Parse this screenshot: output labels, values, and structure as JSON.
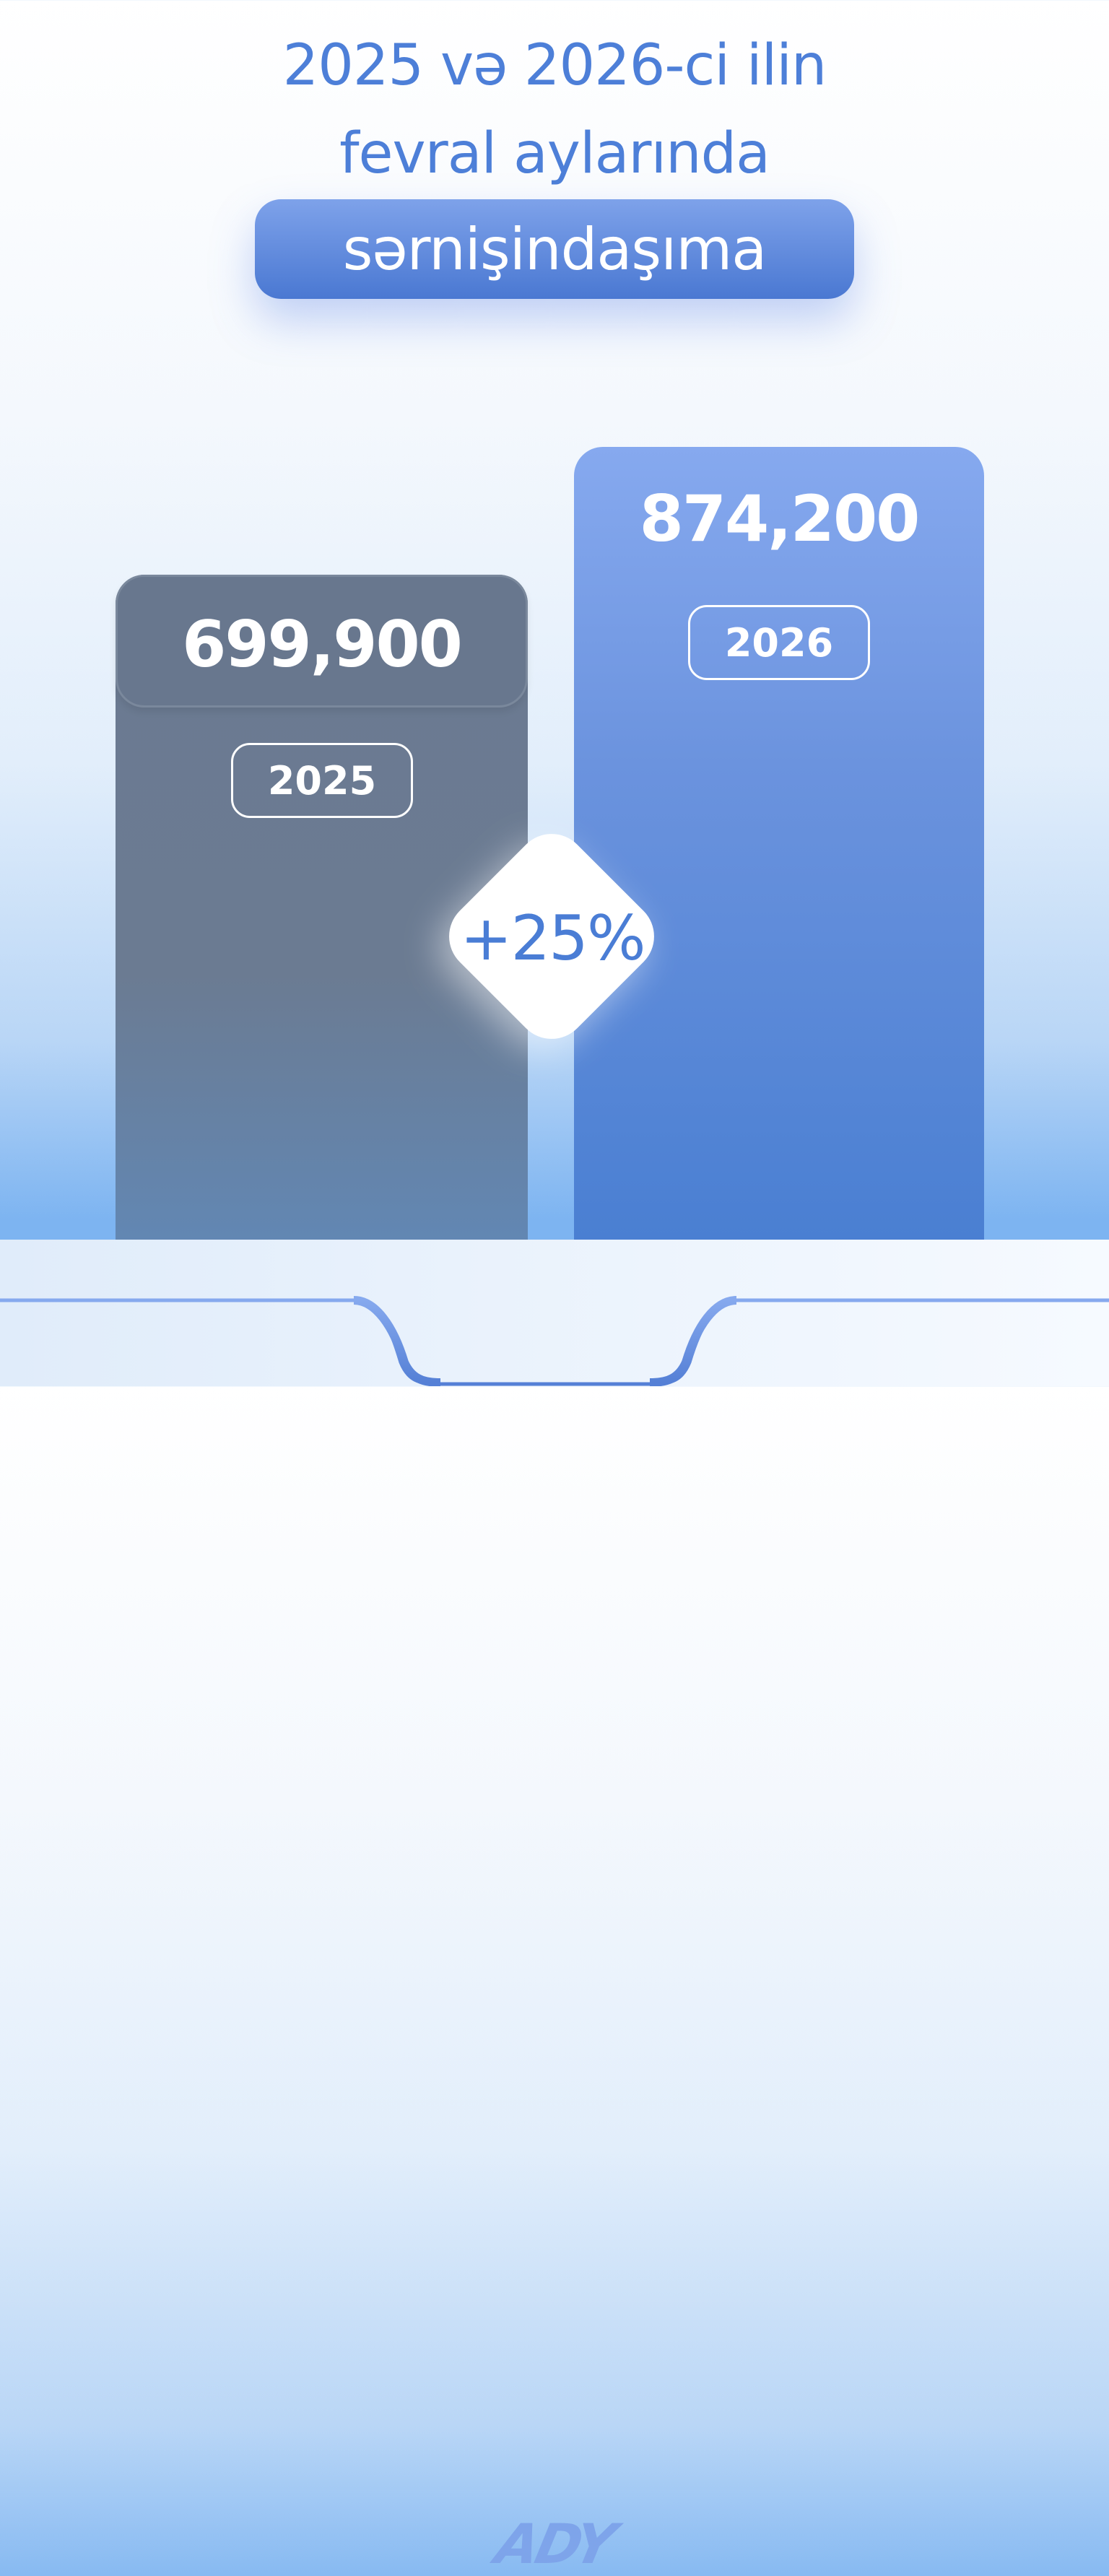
{
  "header": {
    "line1": "2025 və 2026-ci ilin",
    "line2": "fevral aylarında",
    "highlight": "sərnişindaşıma"
  },
  "chart_data": {
    "type": "bar",
    "categories": [
      "2025",
      "2026"
    ],
    "values": [
      699900,
      874200
    ],
    "value_labels": [
      "699,900",
      "874,200"
    ],
    "colors": [
      "#6b7a91",
      "#5b89dc"
    ],
    "change_label": "+25%"
  },
  "footer": {
    "logo": "ADY"
  },
  "colors": {
    "accent": "#4d7fd8",
    "bar_2025": "#6b7a91",
    "bar_2026": "#5b89dc"
  }
}
